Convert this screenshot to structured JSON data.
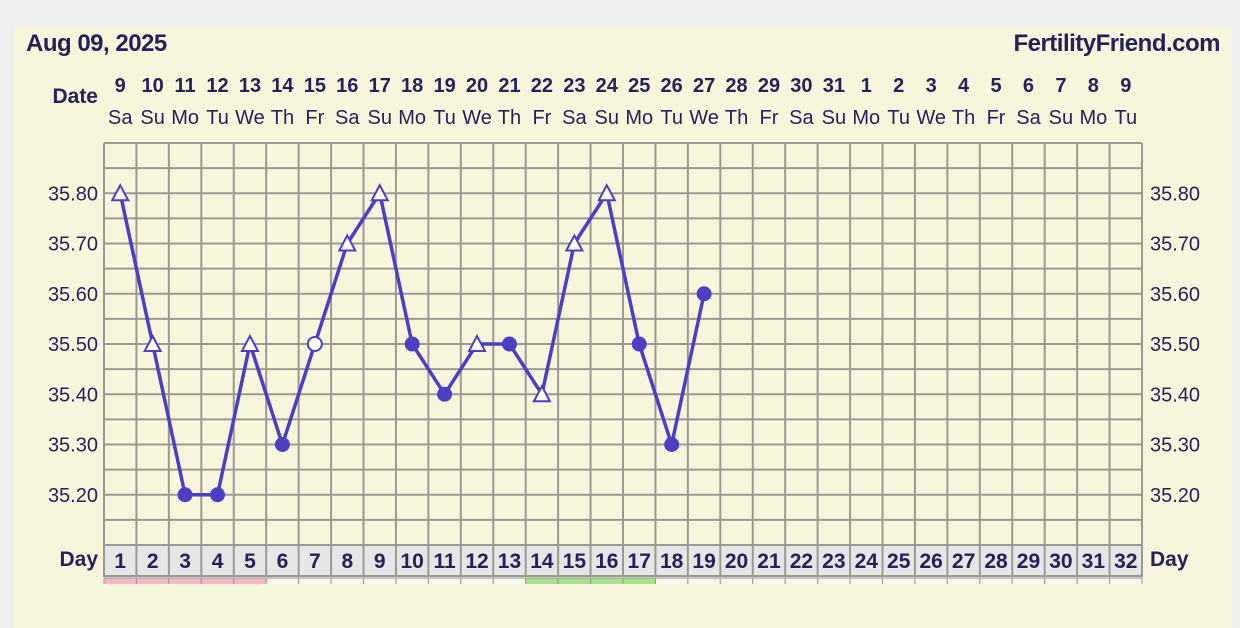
{
  "header": {
    "date": "Aug 09, 2025",
    "brand": "FertilityFriend.com"
  },
  "colors": {
    "line": "#4b3fc4",
    "text": "#27215a",
    "grid": "#9a9a92",
    "panel": "#f8f5dd",
    "pink": "#f4b8c8",
    "green": "#a8e08c"
  },
  "chart_data": {
    "type": "line",
    "row_labels": {
      "date": "Date",
      "day": "Day"
    },
    "dates": [
      "9",
      "10",
      "11",
      "12",
      "13",
      "14",
      "15",
      "16",
      "17",
      "18",
      "19",
      "20",
      "21",
      "22",
      "23",
      "24",
      "25",
      "26",
      "27",
      "28",
      "29",
      "30",
      "31",
      "1",
      "2",
      "3",
      "4",
      "5",
      "6",
      "7",
      "8",
      "9"
    ],
    "weekdays": [
      "Sa",
      "Su",
      "Mo",
      "Tu",
      "We",
      "Th",
      "Fr",
      "Sa",
      "Su",
      "Mo",
      "Tu",
      "We",
      "Th",
      "Fr",
      "Sa",
      "Su",
      "Mo",
      "Tu",
      "We",
      "Th",
      "Fr",
      "Sa",
      "Su",
      "Mo",
      "Tu",
      "We",
      "Th",
      "Fr",
      "Sa",
      "Su",
      "Mo",
      "Tu"
    ],
    "days": [
      1,
      2,
      3,
      4,
      5,
      6,
      7,
      8,
      9,
      10,
      11,
      12,
      13,
      14,
      15,
      16,
      17,
      18,
      19,
      20,
      21,
      22,
      23,
      24,
      25,
      26,
      27,
      28,
      29,
      30,
      31,
      32
    ],
    "y_ticks": [
      "35.80",
      "35.70",
      "35.60",
      "35.50",
      "35.40",
      "35.30",
      "35.20"
    ],
    "ylim": [
      35.1,
      35.9
    ],
    "grid": true,
    "series": [
      {
        "x": [
          1,
          2,
          3,
          4,
          5,
          6,
          7,
          8,
          9,
          10,
          11,
          12,
          13,
          14,
          15,
          16,
          17,
          18,
          19
        ],
        "y": [
          35.8,
          35.5,
          35.2,
          35.2,
          35.5,
          35.3,
          35.5,
          35.7,
          35.8,
          35.5,
          35.4,
          35.5,
          35.5,
          35.4,
          35.7,
          35.8,
          35.5,
          35.3,
          35.6
        ],
        "markers": [
          "triangle",
          "triangle",
          "dot",
          "dot",
          "triangle",
          "dot",
          "open-circle",
          "triangle",
          "triangle",
          "dot",
          "dot",
          "triangle",
          "dot",
          "triangle",
          "triangle",
          "triangle",
          "dot",
          "dot",
          "dot"
        ]
      }
    ],
    "bottom_row_colors": {
      "pink_days": [
        1,
        2,
        3,
        4,
        5
      ],
      "green_days": [
        14,
        15,
        16,
        17
      ]
    }
  }
}
